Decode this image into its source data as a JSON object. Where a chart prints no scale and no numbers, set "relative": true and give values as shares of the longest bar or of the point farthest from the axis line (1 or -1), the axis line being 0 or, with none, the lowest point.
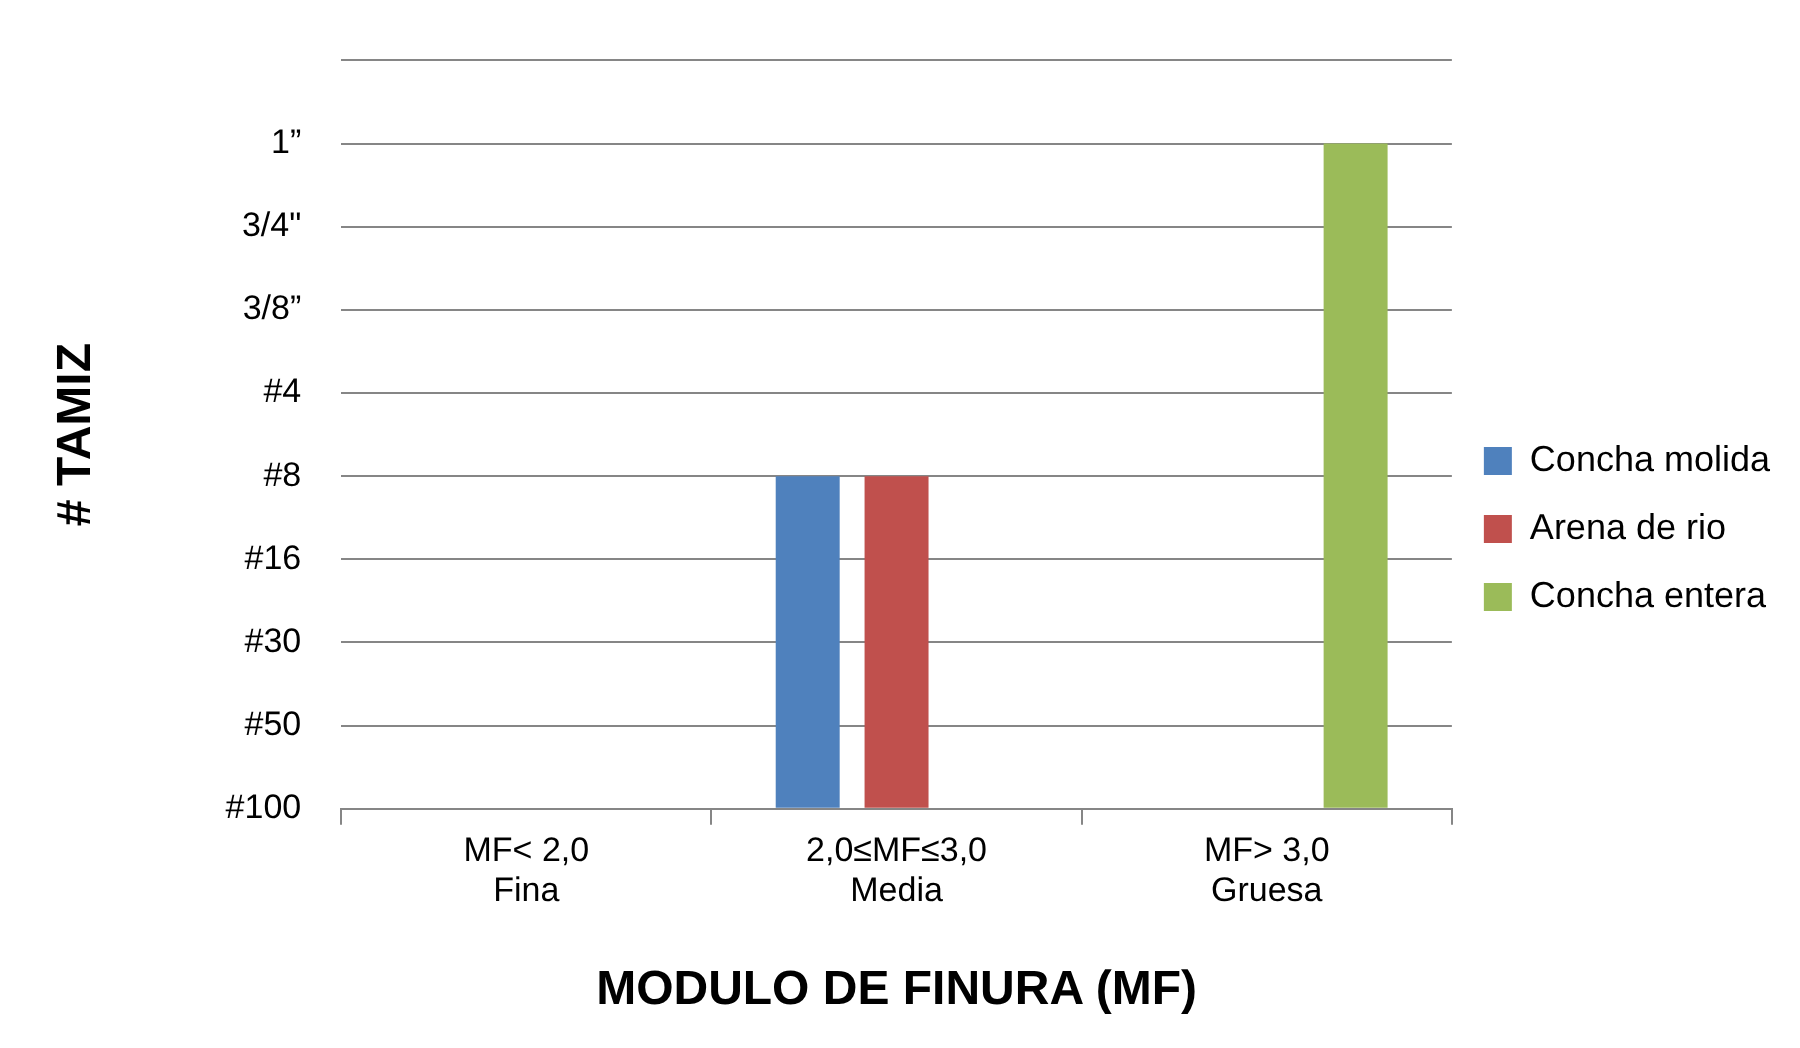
{
  "chart_data": {
    "type": "bar",
    "xlabel": "MODULO DE FINURA (MF)",
    "ylabel": "# TAMIZ",
    "categories": [
      "MF< 2,0\nFina",
      "2,0≤MF≤3,0\nMedia",
      "MF> 3,0\nGruesa"
    ],
    "series": [
      {
        "name": "Concha molida",
        "color": "#4f81bd",
        "values": [
          null,
          0.5,
          null
        ]
      },
      {
        "name": "Arena de rio",
        "color": "#c0504d",
        "values": [
          null,
          0.5,
          null
        ]
      },
      {
        "name": "Concha entera",
        "color": "#9bbb59",
        "values": [
          null,
          null,
          1
        ]
      }
    ],
    "relative": true,
    "y_categories": [
      "1”",
      "3/4\"",
      "3/8”",
      "#4",
      "#8",
      "#16",
      "#30",
      "#50",
      "#100"
    ],
    "grid": "y",
    "legend": "right"
  }
}
